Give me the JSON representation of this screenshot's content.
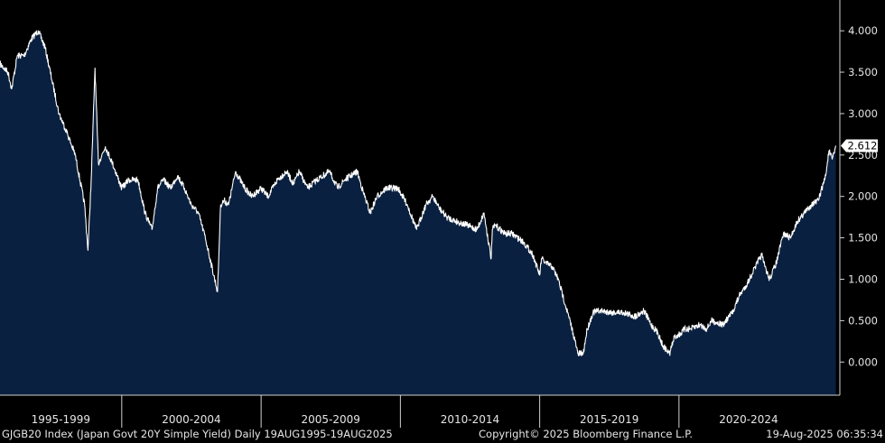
{
  "chart_data": {
    "type": "area",
    "x": [
      "1995-08-19",
      "1995-12-01",
      "1996-01-20",
      "1996-04-01",
      "1996-07-01",
      "1996-10-01",
      "1997-01-01",
      "1997-04-01",
      "1997-07-01",
      "1997-10-01",
      "1998-01-01",
      "1998-05-01",
      "1998-09-01",
      "1998-10-15",
      "1998-12-01",
      "1999-01-15",
      "1999-03-01",
      "1999-06-01",
      "1999-09-01",
      "2000-01-01",
      "2000-04-01",
      "2000-08-01",
      "2000-11-01",
      "2001-02-01",
      "2001-04-15",
      "2001-07-01",
      "2001-10-01",
      "2002-01-01",
      "2002-04-01",
      "2002-07-01",
      "2002-10-01",
      "2003-01-01",
      "2003-03-15",
      "2003-06-10",
      "2003-07-20",
      "2003-09-05",
      "2003-11-01",
      "2004-02-01",
      "2004-06-01",
      "2004-09-01",
      "2005-01-01",
      "2005-04-01",
      "2005-08-01",
      "2005-12-01",
      "2006-03-01",
      "2006-05-15",
      "2006-09-01",
      "2007-01-01",
      "2007-06-15",
      "2007-10-01",
      "2008-01-01",
      "2008-06-15",
      "2008-09-01",
      "2008-12-01",
      "2009-03-01",
      "2009-07-01",
      "2009-12-01",
      "2010-04-01",
      "2010-08-01",
      "2010-12-01",
      "2011-03-01",
      "2011-06-01",
      "2011-09-01",
      "2012-01-01",
      "2012-06-01",
      "2012-10-01",
      "2013-01-01",
      "2013-04-05",
      "2013-04-20",
      "2013-06-01",
      "2013-10-01",
      "2014-01-01",
      "2014-06-01",
      "2014-10-01",
      "2015-01-01",
      "2015-01-25",
      "2015-03-15",
      "2015-06-15",
      "2015-09-01",
      "2016-01-01",
      "2016-03-15",
      "2016-05-15",
      "2016-07-25",
      "2016-09-15",
      "2016-12-01",
      "2017-03-01",
      "2017-08-01",
      "2018-01-01",
      "2018-06-01",
      "2018-10-01",
      "2019-01-01",
      "2019-04-01",
      "2019-06-01",
      "2019-08-30",
      "2019-11-01",
      "2020-02-01",
      "2020-03-15",
      "2020-06-01",
      "2020-10-01",
      "2021-01-01",
      "2021-03-01",
      "2021-08-01",
      "2021-12-01",
      "2022-03-01",
      "2022-06-15",
      "2022-09-01",
      "2022-12-21",
      "2023-01-15",
      "2023-04-01",
      "2023-07-01",
      "2023-10-01",
      "2024-01-01",
      "2024-04-01",
      "2024-07-01",
      "2024-10-01",
      "2025-01-01",
      "2025-04-07",
      "2025-05-20",
      "2025-07-01",
      "2025-08-19"
    ],
    "y": [
      3.6,
      3.5,
      3.3,
      3.7,
      3.7,
      3.9,
      4.0,
      3.8,
      3.4,
      3.0,
      2.8,
      2.5,
      1.9,
      1.35,
      2.3,
      3.55,
      2.4,
      2.6,
      2.4,
      2.1,
      2.2,
      2.2,
      1.8,
      1.6,
      2.1,
      2.2,
      2.1,
      2.25,
      2.1,
      1.9,
      1.8,
      1.5,
      1.2,
      0.85,
      1.9,
      1.95,
      1.9,
      2.3,
      2.1,
      2.0,
      2.1,
      2.0,
      2.2,
      2.3,
      2.15,
      2.3,
      2.1,
      2.2,
      2.3,
      2.1,
      2.2,
      2.3,
      2.05,
      1.8,
      2.0,
      2.1,
      2.1,
      1.9,
      1.6,
      1.9,
      2.0,
      1.85,
      1.75,
      1.7,
      1.65,
      1.6,
      1.8,
      1.25,
      1.6,
      1.65,
      1.55,
      1.55,
      1.45,
      1.3,
      1.05,
      1.25,
      1.2,
      1.15,
      1.0,
      0.6,
      0.35,
      0.1,
      0.1,
      0.4,
      0.6,
      0.62,
      0.6,
      0.6,
      0.55,
      0.62,
      0.45,
      0.35,
      0.2,
      0.1,
      0.3,
      0.35,
      0.4,
      0.4,
      0.45,
      0.4,
      0.5,
      0.45,
      0.6,
      0.8,
      0.95,
      1.1,
      1.3,
      1.2,
      1.0,
      1.2,
      1.55,
      1.5,
      1.7,
      1.8,
      1.9,
      1.95,
      2.25,
      2.55,
      2.45,
      2.612
    ],
    "title": "",
    "xlabel": "",
    "ylabel": "",
    "ylim": [
      -0.4,
      4.35
    ],
    "xlim": [
      "1995-08-19",
      "2025-10-10"
    ],
    "grid": false,
    "last_value_label": "2.612",
    "y_ticks": [
      "4.000",
      "3.500",
      "3.000",
      "2.500",
      "2.000",
      "1.500",
      "1.000",
      "0.500",
      "0.000"
    ],
    "x_ticks": [
      {
        "label": "1995-1999",
        "start": "1995-01-01",
        "end": "1999-12-31"
      },
      {
        "label": "2000-2004",
        "start": "2000-01-01",
        "end": "2004-12-31"
      },
      {
        "label": "2005-2009",
        "start": "2005-01-01",
        "end": "2009-12-31"
      },
      {
        "label": "2010-2014",
        "start": "2010-01-01",
        "end": "2014-12-31"
      },
      {
        "label": "2015-2019",
        "start": "2015-01-01",
        "end": "2019-12-31"
      },
      {
        "label": "2020-2024",
        "start": "2020-01-01",
        "end": "2024-12-31"
      }
    ],
    "colors": {
      "area_fill": "#0a2040",
      "line": "#ffffff",
      "background": "#000000",
      "axis": "#d0d0d0",
      "label_box_bg": "#ffffff",
      "label_box_text": "#000000"
    }
  },
  "footer": {
    "left": "GJGB20 Index (Japan Govt 20Y Simple Yield)  Daily 19AUG1995-19AUG2025",
    "center": "Copyright© 2025 Bloomberg Finance L.P.",
    "right": "19-Aug-2025 06:35:34"
  }
}
